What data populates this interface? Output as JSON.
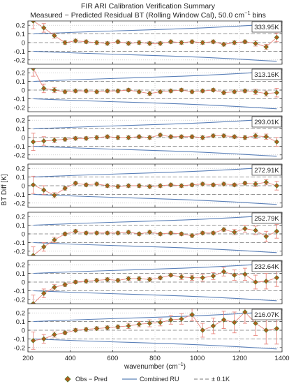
{
  "figure": {
    "title": "FIR ARI Calibration Verification Summary",
    "subtitle_prefix": "Measured − Predicted Residual BT (Rolling Window Cal), 50.0 cm",
    "subtitle_superscript": "−1",
    "subtitle_suffix": " bins",
    "ylabel": "BT Diff [K]",
    "xlabel_prefix": "wavenumber (cm",
    "xlabel_superscript": "−1",
    "xlabel_suffix": ")",
    "x_tick_labels": [
      "200",
      "400",
      "600",
      "800",
      "1000",
      "1200",
      "1400"
    ],
    "y_tick_labels": [
      "0.2",
      "0.1",
      "0",
      "-0.1",
      "-0.2"
    ],
    "legend": {
      "marker_label": "Obs − Pred",
      "ru_label": "Combined RU",
      "ref_label": "± 0.1K"
    }
  },
  "colors": {
    "marker_fill": "#b45a1e",
    "marker_edge": "#4f7f2a",
    "residual_line": "#e8867e",
    "ru_line": "#5b80b8",
    "ref_line": "#777777"
  },
  "chart_data": {
    "type": "scatter",
    "xlim": [
      200,
      1400
    ],
    "ylim": [
      -0.25,
      0.25
    ],
    "grid": true,
    "legend_position": "bottom",
    "x": [
      225,
      275,
      325,
      375,
      425,
      475,
      525,
      575,
      625,
      675,
      725,
      775,
      825,
      875,
      925,
      975,
      1025,
      1075,
      1125,
      1175,
      1225,
      1275,
      1325,
      1375
    ],
    "ru_upper": [
      0.1,
      0.105,
      0.11,
      0.115,
      0.12,
      0.124,
      0.128,
      0.132,
      0.136,
      0.14,
      0.144,
      0.148,
      0.152,
      0.156,
      0.16,
      0.165,
      0.17,
      0.176,
      0.182,
      0.188,
      0.195,
      0.202,
      0.209,
      0.216
    ],
    "panels": [
      {
        "label": "333.95K",
        "values": [
          0.25,
          0.17,
          0.08,
          0.0,
          0.02,
          0.01,
          0.0,
          -0.01,
          0.01,
          -0.01,
          0.0,
          -0.01,
          -0.01,
          0.01,
          0.0,
          0.01,
          0.0,
          0.01,
          -0.02,
          0.0,
          0.01,
          -0.01,
          -0.05,
          0.06
        ],
        "errors": [
          0.09,
          0.05,
          0.03,
          0.02,
          0.02,
          0.02,
          0.02,
          0.02,
          0.02,
          0.02,
          0.02,
          0.02,
          0.02,
          0.02,
          0.02,
          0.02,
          0.02,
          0.02,
          0.02,
          0.02,
          0.02,
          0.03,
          0.03,
          0.05
        ]
      },
      {
        "label": "313.16K",
        "values": [
          0.25,
          0.02,
          0.0,
          -0.02,
          -0.01,
          -0.01,
          -0.02,
          -0.01,
          -0.01,
          0.0,
          -0.02,
          -0.04,
          -0.02,
          -0.01,
          0.0,
          -0.02,
          -0.01,
          0.0,
          -0.03,
          -0.02,
          -0.01,
          -0.02,
          -0.04,
          -0.03
        ],
        "errors": [
          0.09,
          0.05,
          0.03,
          0.02,
          0.02,
          0.02,
          0.02,
          0.02,
          0.02,
          0.02,
          0.02,
          0.02,
          0.02,
          0.02,
          0.02,
          0.02,
          0.02,
          0.02,
          0.02,
          0.02,
          0.02,
          0.03,
          0.03,
          0.05
        ]
      },
      {
        "label": "293.01K",
        "values": [
          -0.05,
          -0.04,
          -0.03,
          -0.02,
          -0.01,
          -0.01,
          0.0,
          0.01,
          0.0,
          0.0,
          0.01,
          0.0,
          0.03,
          0.01,
          0.01,
          0.01,
          0.0,
          0.02,
          0.02,
          0.01,
          0.0,
          0.02,
          0.01,
          -0.05
        ],
        "errors": [
          0.1,
          0.05,
          0.03,
          0.02,
          0.02,
          0.02,
          0.02,
          0.02,
          0.02,
          0.02,
          0.02,
          0.02,
          0.02,
          0.02,
          0.02,
          0.02,
          0.02,
          0.02,
          0.02,
          0.02,
          0.02,
          0.03,
          0.03,
          0.05
        ]
      },
      {
        "label": "272.91K",
        "values": [
          0.01,
          -0.05,
          -0.11,
          -0.03,
          0.03,
          0.01,
          0.02,
          0.0,
          -0.01,
          0.0,
          0.0,
          -0.01,
          0.0,
          0.01,
          0.0,
          0.01,
          0.02,
          0.01,
          0.02,
          0.01,
          0.03,
          0.02,
          0.04,
          0.0
        ],
        "errors": [
          0.1,
          0.05,
          0.03,
          0.02,
          0.02,
          0.02,
          0.02,
          0.02,
          0.02,
          0.02,
          0.02,
          0.02,
          0.02,
          0.02,
          0.02,
          0.02,
          0.02,
          0.02,
          0.02,
          0.02,
          0.02,
          0.03,
          0.03,
          0.05
        ]
      },
      {
        "label": "252.79K",
        "values": [
          -0.25,
          -0.15,
          -0.07,
          0.0,
          0.03,
          0.01,
          0.01,
          0.01,
          0.01,
          0.02,
          0.0,
          0.02,
          0.0,
          0.01,
          0.0,
          -0.02,
          0.01,
          0.01,
          0.05,
          0.02,
          0.06,
          0.04,
          -0.03,
          0.03
        ],
        "errors": [
          0.1,
          0.05,
          0.03,
          0.02,
          0.02,
          0.02,
          0.02,
          0.02,
          0.02,
          0.02,
          0.02,
          0.02,
          0.02,
          0.02,
          0.02,
          0.02,
          0.02,
          0.02,
          0.02,
          0.03,
          0.04,
          0.05,
          0.06,
          0.08
        ]
      },
      {
        "label": "232.64K",
        "values": [
          -0.25,
          -0.13,
          -0.06,
          -0.03,
          0.0,
          0.01,
          0.02,
          0.03,
          0.02,
          0.04,
          0.04,
          0.03,
          0.05,
          0.08,
          0.06,
          0.05,
          0.05,
          0.07,
          0.12,
          0.08,
          0.09,
          0.0,
          0.01,
          0.05
        ],
        "errors": [
          0.1,
          0.05,
          0.03,
          0.02,
          0.02,
          0.02,
          0.02,
          0.02,
          0.02,
          0.02,
          0.02,
          0.02,
          0.02,
          0.02,
          0.03,
          0.03,
          0.04,
          0.04,
          0.05,
          0.06,
          0.07,
          0.08,
          0.09,
          0.1
        ]
      },
      {
        "label": "216.07K",
        "values": [
          -0.12,
          -0.1,
          -0.05,
          -0.03,
          0.0,
          0.01,
          0.02,
          0.03,
          0.04,
          0.05,
          0.07,
          0.08,
          0.09,
          0.12,
          0.13,
          0.18,
          0.0,
          0.05,
          0.12,
          0.09,
          0.21,
          0.08,
          0.0,
          0.02
        ],
        "errors": [
          0.1,
          0.05,
          0.03,
          0.02,
          0.02,
          0.02,
          0.02,
          0.02,
          0.02,
          0.03,
          0.03,
          0.04,
          0.04,
          0.05,
          0.06,
          0.07,
          0.08,
          0.09,
          0.1,
          0.12,
          0.13,
          0.14,
          0.16,
          0.18
        ]
      }
    ]
  }
}
